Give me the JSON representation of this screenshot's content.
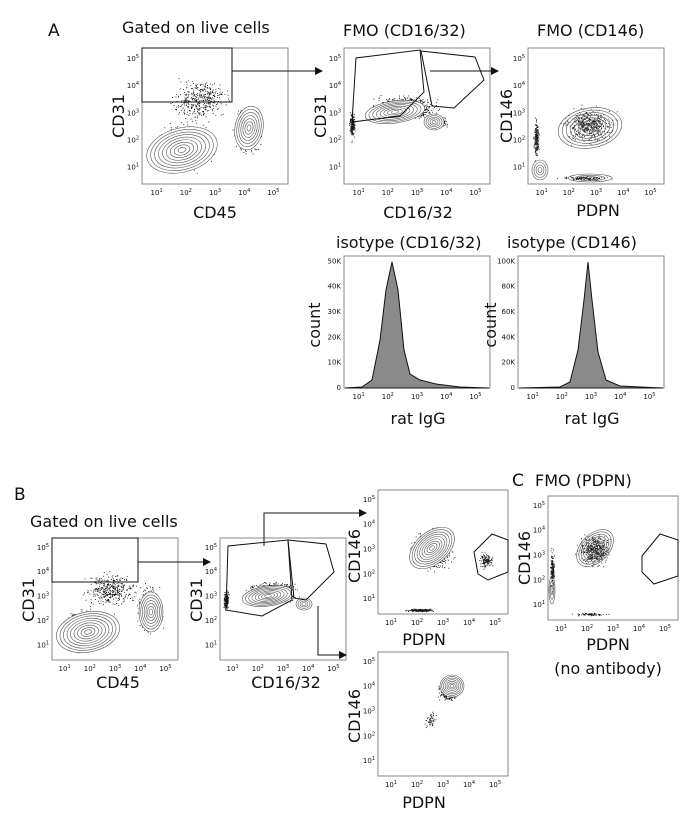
{
  "figure": {
    "panel_labels": {
      "a": "A",
      "b": "B",
      "c": "C"
    },
    "titles": {
      "a1": "Gated on live cells",
      "a2": "FMO (CD16/32)",
      "a3": "FMO (CD146)",
      "a4": "isotype (CD16/32)",
      "a5": "isotype (CD146)",
      "b1": "Gated on live cells",
      "c1": "FMO (PDPN)"
    },
    "axis_labels": {
      "cd31": "CD31",
      "cd45": "CD45",
      "cd1632": "CD16/32",
      "cd146": "CD146",
      "pdpn": "PDPN",
      "count": "count",
      "rat_igg": "rat IgG",
      "no_antibody": "(no antibody)"
    },
    "log_ticks": {
      "x": [
        "10",
        "10",
        "10",
        "10",
        "10"
      ],
      "x_exp": [
        "1",
        "2",
        "3",
        "4",
        "5"
      ],
      "y": [
        "10",
        "10",
        "10",
        "10",
        "10"
      ],
      "y_exp": [
        "1",
        "2",
        "3",
        "4",
        "5"
      ]
    },
    "count_ticks_a4": [
      "0",
      "10K",
      "20K",
      "30K",
      "40K",
      "50K"
    ],
    "count_ticks_a5": [
      "0",
      "20K",
      "40K",
      "60K",
      "80K",
      "100K"
    ]
  }
}
